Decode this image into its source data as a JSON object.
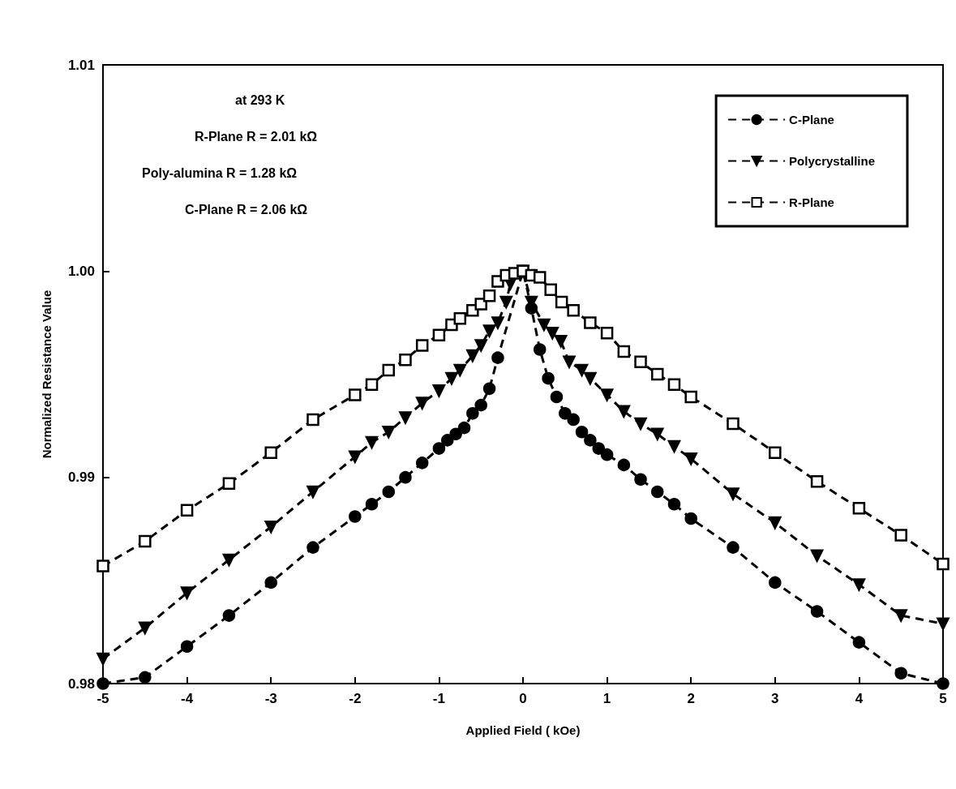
{
  "chart_data": {
    "type": "line",
    "xlabel": "Applied Field ( kOe)",
    "ylabel": "Normalized Resistance Value",
    "annotations": [
      "at 293 K",
      "R-Plane R = 2.01 kΩ",
      "Poly-alumina R = 1.28 kΩ",
      "C-Plane R = 2.06 kΩ"
    ],
    "xlim": [
      -5,
      5
    ],
    "xticks": [
      -5,
      -4,
      -3,
      -2,
      -1,
      0,
      1,
      2,
      3,
      4,
      5
    ],
    "ylim": [
      0.98,
      1.01
    ],
    "yticks": [
      0.98,
      0.99,
      {
        "value": 1,
        "label": "1.00"
      },
      1.01
    ],
    "legend": "top right",
    "grid": false,
    "line_style": "dashed",
    "series": [
      {
        "name": "C-Plane",
        "color": "#000000",
        "marker": "circle",
        "x": [
          -5,
          -4.5,
          -4,
          -3.5,
          -3,
          -2.5,
          -2,
          -1.8,
          -1.6,
          -1.4,
          -1.2,
          -1,
          -0.9,
          -0.8,
          -0.7,
          -0.6,
          -0.5,
          -0.4,
          -0.3,
          0,
          0.1,
          0.2,
          0.3,
          0.4,
          0.5,
          0.6,
          0.7,
          0.8,
          0.9,
          1,
          1.2,
          1.4,
          1.6,
          1.8,
          2,
          2.5,
          3,
          3.5,
          4,
          4.5,
          5
        ],
        "values": [
          0.98,
          0.9803,
          0.9818,
          0.9833,
          0.9849,
          0.9866,
          0.9881,
          0.9887,
          0.9893,
          0.99,
          0.9907,
          0.9914,
          0.9918,
          0.9921,
          0.9924,
          0.9931,
          0.9935,
          0.9943,
          0.9958,
          1,
          0.9982,
          0.9962,
          0.9948,
          0.9939,
          0.9931,
          0.9928,
          0.9922,
          0.9918,
          0.9914,
          0.9911,
          0.9906,
          0.9899,
          0.9893,
          0.9887,
          0.988,
          0.9866,
          0.9849,
          0.9835,
          0.982,
          0.9805,
          0.98
        ]
      },
      {
        "name": "Polycrystalline",
        "color": "#000000",
        "marker": "triangle",
        "x": [
          -5,
          -4.5,
          -4,
          -3.5,
          -3,
          -2.5,
          -2,
          -1.8,
          -1.6,
          -1.4,
          -1.2,
          -1,
          -0.85,
          -0.75,
          -0.6,
          -0.5,
          -0.4,
          -0.3,
          -0.2,
          -0.15,
          0,
          0.1,
          0.25,
          0.35,
          0.45,
          0.55,
          0.7,
          0.8,
          1,
          1.2,
          1.4,
          1.6,
          1.8,
          2,
          2.5,
          3,
          3.5,
          4,
          4.5,
          5
        ],
        "values": [
          0.9812,
          0.9827,
          0.9844,
          0.986,
          0.9876,
          0.9893,
          0.991,
          0.9917,
          0.9922,
          0.9929,
          0.9936,
          0.9942,
          0.9948,
          0.9952,
          0.9959,
          0.9964,
          0.9971,
          0.9975,
          0.9985,
          0.9994,
          1,
          0.9985,
          0.9974,
          0.997,
          0.9966,
          0.9956,
          0.9952,
          0.9948,
          0.994,
          0.9932,
          0.9926,
          0.9921,
          0.9915,
          0.9909,
          0.9892,
          0.9878,
          0.9862,
          0.9848,
          0.9833,
          0.9829
        ]
      },
      {
        "name": "R-Plane",
        "color": "#000000",
        "marker": "square",
        "x": [
          -5,
          -4.5,
          -4,
          -3.5,
          -3,
          -2.5,
          -2,
          -1.8,
          -1.6,
          -1.4,
          -1.2,
          -1,
          -0.85,
          -0.75,
          -0.6,
          -0.5,
          -0.4,
          -0.3,
          -0.2,
          -0.1,
          0,
          0.1,
          0.2,
          0.33,
          0.46,
          0.6,
          0.8,
          1,
          1.2,
          1.4,
          1.6,
          1.8,
          2,
          2.5,
          3,
          3.5,
          4,
          4.5,
          5
        ],
        "values": [
          0.9857,
          0.9869,
          0.9884,
          0.9897,
          0.9912,
          0.9928,
          0.994,
          0.9945,
          0.9952,
          0.9957,
          0.9964,
          0.9969,
          0.9974,
          0.9977,
          0.9981,
          0.9984,
          0.9988,
          0.9995,
          0.9998,
          0.9999,
          1,
          0.9998,
          0.9997,
          0.9991,
          0.9985,
          0.9981,
          0.9975,
          0.997,
          0.9961,
          0.9956,
          0.995,
          0.9945,
          0.9939,
          0.9926,
          0.9912,
          0.9898,
          0.9885,
          0.9872,
          0.9858
        ]
      }
    ]
  }
}
